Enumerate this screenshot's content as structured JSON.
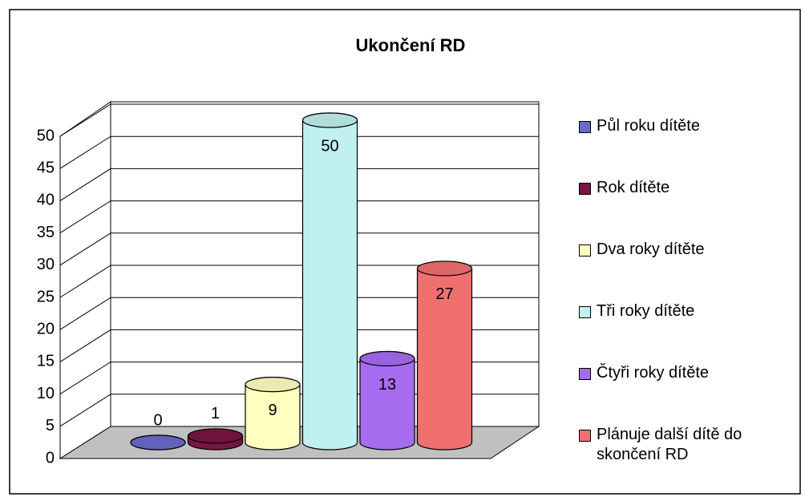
{
  "chart_data": {
    "type": "bar",
    "title": "Ukončení RD",
    "categories": [
      null
    ],
    "series": [
      {
        "name": "Půl roku dítěte",
        "color": "#6a6acc",
        "values": [
          0
        ]
      },
      {
        "name": "Rok dítěte",
        "color": "#7a1540",
        "values": [
          1
        ]
      },
      {
        "name": "Dva roky dítěte",
        "color": "#ffffc0",
        "values": [
          9
        ]
      },
      {
        "name": "Tři roky dítěte",
        "color": "#c0f0f0",
        "values": [
          50
        ]
      },
      {
        "name": "Čtyři roky dítěte",
        "color": "#a66cf0",
        "values": [
          13
        ]
      },
      {
        "name": "Plánuje další dítě do skončení RD",
        "color": "#f07070",
        "values": [
          27
        ]
      }
    ],
    "ylim": [
      0,
      50
    ],
    "yticks": [
      0,
      5,
      10,
      15,
      20,
      25,
      30,
      35,
      40,
      45,
      50
    ],
    "grid": true,
    "legend": "right"
  }
}
